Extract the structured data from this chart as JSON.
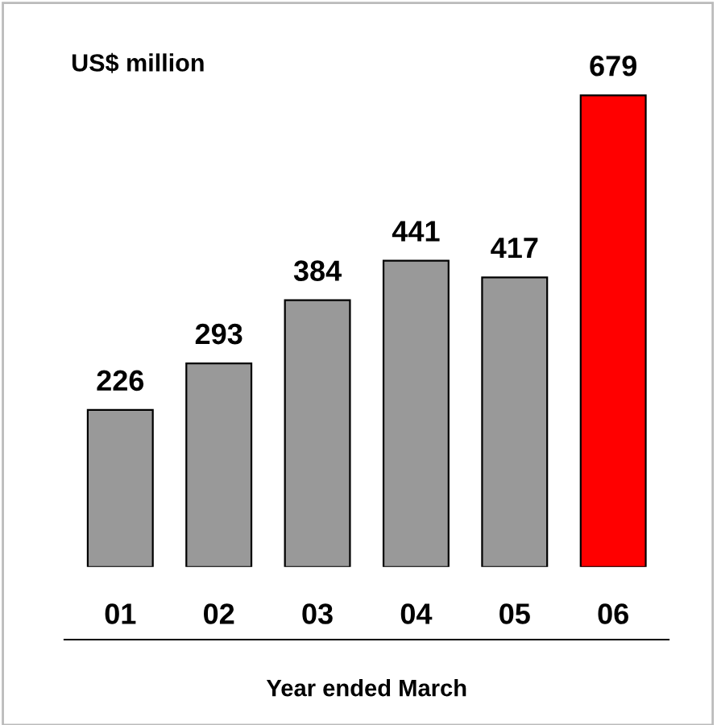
{
  "chart_data": {
    "type": "bar",
    "ylabel": "US$ million",
    "xlabel": "Year ended March",
    "categories": [
      "01",
      "02",
      "03",
      "04",
      "05",
      "06"
    ],
    "values": [
      226,
      293,
      384,
      441,
      417,
      679
    ],
    "colors": [
      "#999999",
      "#999999",
      "#999999",
      "#999999",
      "#999999",
      "#ff0000"
    ],
    "data_labels": true,
    "grid": false,
    "legend": false,
    "tick_labels": "x"
  }
}
